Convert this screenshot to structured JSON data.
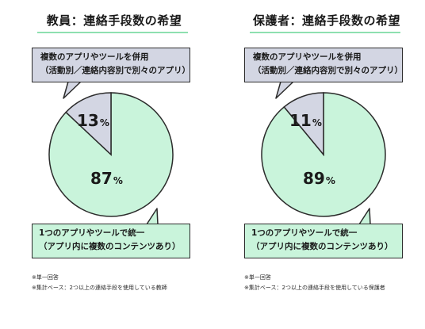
{
  "colors": {
    "minor_slice": "#d3d6e3",
    "major_slice": "#c9f4db",
    "outline": "#2b2b2b",
    "title_underline": "#8ee0b0"
  },
  "panels": [
    {
      "title": "教員：連絡手段数の希望",
      "top_bubble": [
        "複数のアプリやツールを併用",
        "（活動別／連絡内容別で別々のアプリ）"
      ],
      "bottom_bubble": [
        "1つのアプリやツールで統一",
        "（アプリ内に複数のコンテンツあり）"
      ],
      "minor_num": "13",
      "major_num": "87",
      "pct_symbol": "%",
      "notes": [
        "※単一回答",
        "※集計ベース：2つ以上の連絡手段を使用している教師"
      ]
    },
    {
      "title": "保護者：連絡手段数の希望",
      "top_bubble": [
        "複数のアプリやツールを併用",
        "（活動別／連絡内容別で別々のアプリ）"
      ],
      "bottom_bubble": [
        "1つのアプリやツールで統一",
        "（アプリ内に複数のコンテンツあり）"
      ],
      "minor_num": "11",
      "major_num": "89",
      "pct_symbol": "%",
      "notes": [
        "※単一回答",
        "※集計ベース：2つ以上の連絡手段を使用している保護者"
      ]
    }
  ],
  "chart_data": [
    {
      "type": "pie",
      "title": "教員：連絡手段数の希望",
      "slices": [
        {
          "label": "複数のアプリやツールを併用（活動別／連絡内容別で別々のアプリ）",
          "value": 13,
          "color": "#d3d6e3"
        },
        {
          "label": "1つのアプリやツールで統一（アプリ内に複数のコンテンツあり）",
          "value": 87,
          "color": "#c9f4db"
        }
      ],
      "unit": "%"
    },
    {
      "type": "pie",
      "title": "保護者：連絡手段数の希望",
      "slices": [
        {
          "label": "複数のアプリやツールを併用（活動別／連絡内容別で別々のアプリ）",
          "value": 11,
          "color": "#d3d6e3"
        },
        {
          "label": "1つのアプリやツールで統一（アプリ内に複数のコンテンツあり）",
          "value": 89,
          "color": "#c9f4db"
        }
      ],
      "unit": "%"
    }
  ]
}
